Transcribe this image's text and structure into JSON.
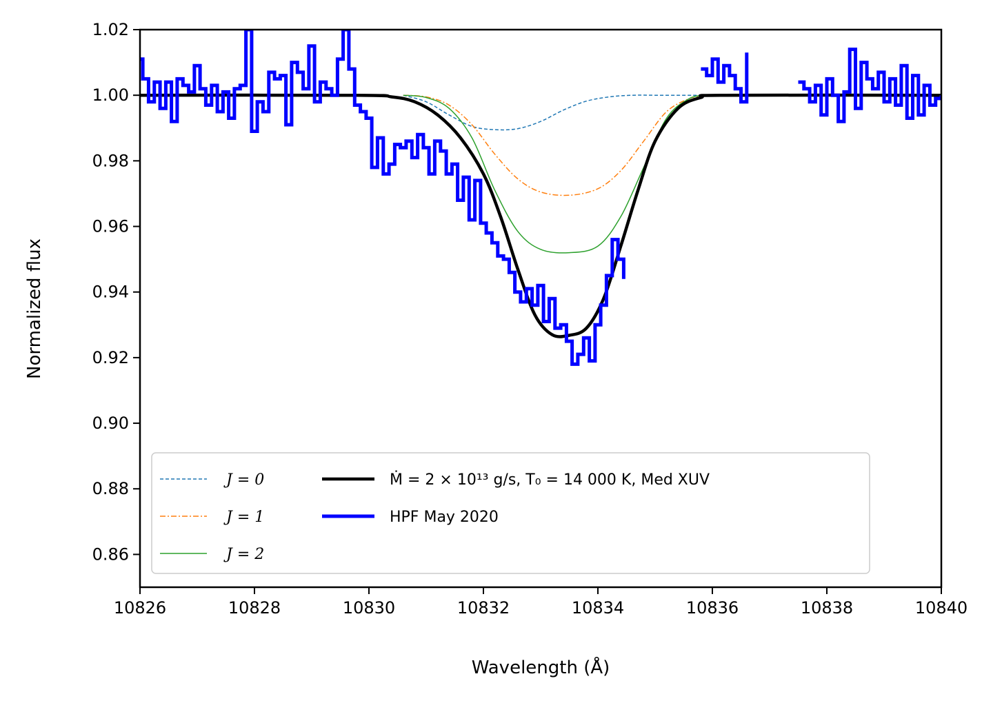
{
  "chart_data": {
    "type": "line",
    "xlabel": "Wavelength (Å)",
    "ylabel": "Normalized flux",
    "xlim": [
      10826,
      10840
    ],
    "ylim": [
      0.85,
      1.02
    ],
    "xticks": [
      "10826",
      "10828",
      "10830",
      "10832",
      "10834",
      "10836",
      "10838",
      "10840"
    ],
    "yticks": [
      "0.86",
      "0.88",
      "0.90",
      "0.92",
      "0.94",
      "0.96",
      "0.98",
      "1.00",
      "1.02"
    ],
    "grid": false,
    "legend_position": "lower-left",
    "series": [
      {
        "name": "J = 0",
        "style": "dashed",
        "color": "#1f77b4",
        "x": [
          10830.6,
          10831.0,
          10831.4,
          10831.8,
          10832.2,
          10832.6,
          10833.0,
          10833.4,
          10833.8,
          10834.2,
          10834.6,
          10835.0,
          10835.5,
          10835.8
        ],
        "y": [
          1.0,
          0.998,
          0.994,
          0.9905,
          0.9895,
          0.9898,
          0.992,
          0.9955,
          0.9982,
          0.9995,
          1.0,
          1.0,
          1.0,
          1.0
        ]
      },
      {
        "name": "J = 1",
        "style": "dashdot",
        "color": "#ff7f0e",
        "x": [
          10830.6,
          10831.0,
          10831.4,
          10831.8,
          10832.2,
          10832.6,
          10833.0,
          10833.5,
          10834.0,
          10834.4,
          10834.8,
          10835.2,
          10835.6,
          10835.9
        ],
        "y": [
          1.0,
          0.9995,
          0.997,
          0.991,
          0.982,
          0.9745,
          0.9705,
          0.9695,
          0.9715,
          0.977,
          0.986,
          0.995,
          0.999,
          1.0
        ]
      },
      {
        "name": "J = 2",
        "style": "solid",
        "color": "#2ca02c",
        "x": [
          10830.6,
          10831.0,
          10831.4,
          10831.8,
          10832.2,
          10832.6,
          10833.0,
          10833.5,
          10834.0,
          10834.4,
          10834.8,
          10835.2,
          10835.6,
          10835.9
        ],
        "y": [
          1.0,
          0.9993,
          0.996,
          0.987,
          0.971,
          0.9585,
          0.953,
          0.952,
          0.954,
          0.963,
          0.978,
          0.993,
          0.999,
          1.0
        ]
      },
      {
        "name": "Ṁ = 2 × 10¹³ g/s, T₀ = 14 000 K, Med XUV",
        "style": "solid-thick",
        "color": "#000000",
        "x": [
          10826.0,
          10829.8,
          10830.4,
          10830.8,
          10831.2,
          10831.6,
          10832.0,
          10832.3,
          10832.6,
          10832.9,
          10833.2,
          10833.5,
          10833.8,
          10834.1,
          10834.4,
          10834.7,
          10835.0,
          10835.4,
          10835.8,
          10836.2,
          10840.0
        ],
        "y": [
          1.0,
          1.0,
          0.9995,
          0.998,
          0.994,
          0.987,
          0.976,
          0.963,
          0.947,
          0.933,
          0.927,
          0.9268,
          0.929,
          0.938,
          0.954,
          0.971,
          0.986,
          0.996,
          0.9993,
          1.0,
          1.0
        ]
      },
      {
        "name": "HPF May 2020",
        "style": "steps-thick",
        "color": "#0000ff",
        "segments": [
          {
            "x": [
              10826.0,
              10826.05,
              10826.15,
              10826.25,
              10826.35,
              10826.45,
              10826.55,
              10826.65,
              10826.75,
              10826.85,
              10826.95,
              10827.05,
              10827.15,
              10827.25,
              10827.35,
              10827.45,
              10827.55,
              10827.65,
              10827.75,
              10827.85,
              10827.95,
              10828.05,
              10828.15,
              10828.25,
              10828.35,
              10828.45,
              10828.55,
              10828.65,
              10828.75,
              10828.85,
              10828.95,
              10829.05,
              10829.15,
              10829.25,
              10829.35,
              10829.45,
              10829.55,
              10829.65,
              10829.75,
              10829.85,
              10829.95,
              10830.05,
              10830.15,
              10830.25,
              10830.35,
              10830.45,
              10830.55,
              10830.65,
              10830.75,
              10830.85,
              10830.95,
              10831.05,
              10831.15,
              10831.25,
              10831.35,
              10831.45,
              10831.55,
              10831.65,
              10831.75,
              10831.85,
              10831.95,
              10832.05,
              10832.15,
              10832.25,
              10832.35,
              10832.45,
              10832.55,
              10832.65,
              10832.75,
              10832.85,
              10832.95,
              10833.05,
              10833.15,
              10833.25,
              10833.35,
              10833.45,
              10833.55,
              10833.65,
              10833.75,
              10833.85,
              10833.95,
              10834.05,
              10834.15,
              10834.25,
              10834.35,
              10834.45
            ],
            "y": [
              1.011,
              1.005,
              0.998,
              1.004,
              0.996,
              1.004,
              0.992,
              1.005,
              1.003,
              1.001,
              1.009,
              1.002,
              0.997,
              1.003,
              0.995,
              1.001,
              0.993,
              1.002,
              1.003,
              1.02,
              0.989,
              0.998,
              0.995,
              1.007,
              1.005,
              1.006,
              0.991,
              1.01,
              1.007,
              1.002,
              1.015,
              0.998,
              1.004,
              1.002,
              1.0,
              1.011,
              1.02,
              1.008,
              0.997,
              0.995,
              0.993,
              0.978,
              0.987,
              0.976,
              0.979,
              0.985,
              0.984,
              0.986,
              0.981,
              0.988,
              0.984,
              0.976,
              0.986,
              0.983,
              0.976,
              0.979,
              0.968,
              0.975,
              0.962,
              0.974,
              0.961,
              0.958,
              0.955,
              0.951,
              0.95,
              0.946,
              0.94,
              0.937,
              0.941,
              0.936,
              0.942,
              0.931,
              0.938,
              0.929,
              0.93,
              0.925,
              0.918,
              0.921,
              0.926,
              0.919,
              0.93,
              0.936,
              0.945,
              0.956,
              0.95,
              0.944
            ]
          },
          {
            "x": [
              10835.8,
              10835.9,
              10836.0,
              10836.1,
              10836.2,
              10836.3,
              10836.4,
              10836.5,
              10836.6
            ],
            "y": [
              1.008,
              1.006,
              1.011,
              1.004,
              1.009,
              1.006,
              1.002,
              0.998,
              1.013
            ]
          },
          {
            "x": [
              10837.5,
              10837.6,
              10837.7,
              10837.8,
              10837.9,
              10838.0,
              10838.1,
              10838.2,
              10838.3,
              10838.4,
              10838.5,
              10838.6,
              10838.7,
              10838.8,
              10838.9,
              10839.0,
              10839.1,
              10839.2,
              10839.3,
              10839.4,
              10839.5,
              10839.6,
              10839.7,
              10839.8,
              10839.9,
              10840.0
            ],
            "y": [
              1.004,
              1.002,
              0.998,
              1.003,
              0.994,
              1.005,
              1.0,
              0.992,
              1.001,
              1.014,
              0.996,
              1.01,
              1.005,
              1.002,
              1.007,
              0.998,
              1.005,
              0.997,
              1.009,
              0.993,
              1.006,
              0.994,
              1.003,
              0.997,
              0.999,
              1.0
            ]
          }
        ]
      }
    ]
  },
  "legend": {
    "j0_label": "J = 0",
    "j1_label": "J = 1",
    "j2_label": "J = 2",
    "model_label": "Ṁ = 2 × 10¹³ g/s, T₀ = 14 000 K, Med XUV",
    "data_label": "HPF May 2020"
  }
}
